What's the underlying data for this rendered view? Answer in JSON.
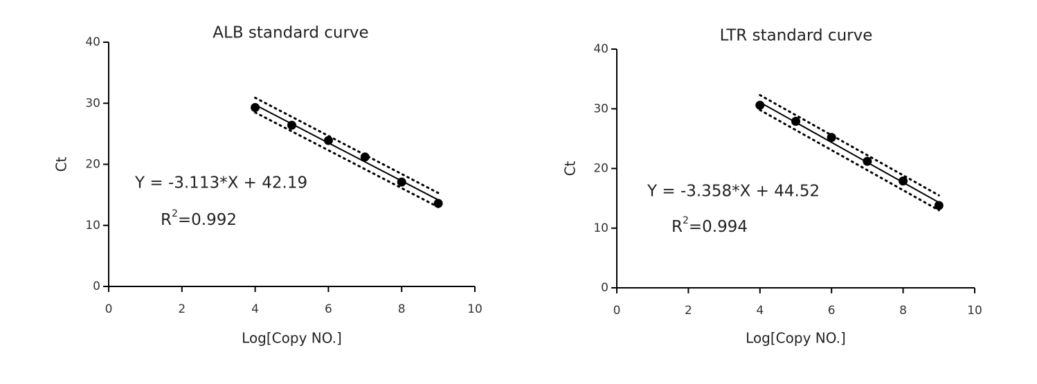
{
  "chart_data": [
    {
      "type": "scatter",
      "title": "ALB standard curve",
      "x_label": "Log[Copy NO.]",
      "y_label": "Ct",
      "xlim": [
        0,
        10
      ],
      "ylim": [
        0,
        40
      ],
      "xticks": [
        0,
        2,
        4,
        6,
        8,
        10
      ],
      "yticks": [
        0,
        10,
        20,
        30,
        40
      ],
      "equation": "Y = -3.113*X + 42.19",
      "r2": {
        "base": "R",
        "sup": "2",
        "rest": "=0.992"
      },
      "series": [
        {
          "style": "markers",
          "color": "#000000",
          "x": [
            4,
            5,
            6,
            7,
            8,
            9
          ],
          "values": [
            29.3,
            26.4,
            23.9,
            21.2,
            17.1,
            13.6
          ]
        },
        {
          "style": "solid",
          "color": "#000000",
          "x": [
            4,
            9
          ],
          "values": [
            29.74,
            14.17
          ]
        },
        {
          "style": "dotted",
          "color": "#000000",
          "x": [
            4,
            9
          ],
          "values": [
            30.9,
            15.3
          ]
        },
        {
          "style": "dotted",
          "color": "#000000",
          "x": [
            4,
            9
          ],
          "values": [
            28.5,
            13.0
          ]
        }
      ]
    },
    {
      "type": "scatter",
      "title": "LTR standard curve",
      "x_label": "Log[Copy NO.]",
      "y_label": "Ct",
      "xlim": [
        0,
        10
      ],
      "ylim": [
        0,
        40
      ],
      "xticks": [
        0,
        2,
        4,
        6,
        8,
        10
      ],
      "yticks": [
        0,
        10,
        20,
        30,
        40
      ],
      "equation": "Y = -3.358*X + 44.52",
      "r2": {
        "base": "R",
        "sup": "2",
        "rest": "=0.994"
      },
      "series": [
        {
          "style": "markers",
          "color": "#000000",
          "x": [
            4,
            5,
            6,
            7,
            8,
            9
          ],
          "values": [
            30.6,
            27.9,
            25.2,
            21.2,
            17.9,
            13.8
          ]
        },
        {
          "style": "solid",
          "color": "#000000",
          "x": [
            4,
            9
          ],
          "values": [
            31.09,
            14.3
          ]
        },
        {
          "style": "dotted",
          "color": "#000000",
          "x": [
            4,
            9
          ],
          "values": [
            32.3,
            15.5
          ]
        },
        {
          "style": "dotted",
          "color": "#000000",
          "x": [
            4,
            9
          ],
          "values": [
            29.8,
            13.0
          ]
        }
      ]
    }
  ]
}
